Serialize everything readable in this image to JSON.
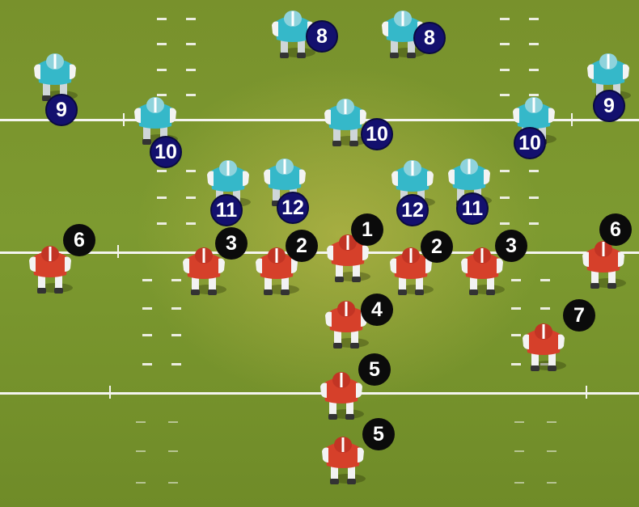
{
  "colors": {
    "defense_badge": "#13106e",
    "offense_badge": "#0b0b0b",
    "defense_jersey": "#35b8c9",
    "offense_jersey": "#d6402a",
    "field": "#7d9a30",
    "lines": "#f4f4ee"
  },
  "defense": [
    {
      "id": "d8a",
      "label": "8"
    },
    {
      "id": "d8b",
      "label": "8"
    },
    {
      "id": "d9a",
      "label": "9"
    },
    {
      "id": "d9b",
      "label": "9"
    },
    {
      "id": "d10a",
      "label": "10"
    },
    {
      "id": "d10b",
      "label": "10"
    },
    {
      "id": "d10c",
      "label": "10"
    },
    {
      "id": "d11a",
      "label": "11"
    },
    {
      "id": "d12a",
      "label": "12"
    },
    {
      "id": "d12b",
      "label": "12"
    },
    {
      "id": "d11b",
      "label": "11"
    }
  ],
  "offense": [
    {
      "id": "o6a",
      "label": "6"
    },
    {
      "id": "o3a",
      "label": "3"
    },
    {
      "id": "o2a",
      "label": "2"
    },
    {
      "id": "o1",
      "label": "1"
    },
    {
      "id": "o2b",
      "label": "2"
    },
    {
      "id": "o3b",
      "label": "3"
    },
    {
      "id": "o6b",
      "label": "6"
    },
    {
      "id": "o4",
      "label": "4"
    },
    {
      "id": "o7",
      "label": "7"
    },
    {
      "id": "o5a",
      "label": "5"
    },
    {
      "id": "o5b",
      "label": "5"
    }
  ]
}
